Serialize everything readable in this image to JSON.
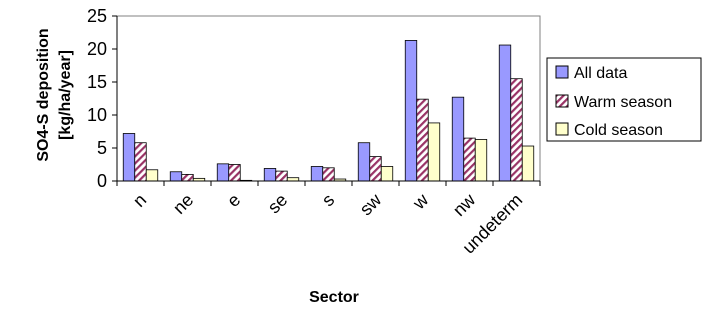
{
  "chart_data": {
    "type": "bar",
    "title": "",
    "xlabel": "Sector",
    "ylabel": [
      "SO4-S deposition",
      "[kg/ha/year]"
    ],
    "categories": [
      "n",
      "ne",
      "e",
      "se",
      "s",
      "sw",
      "w",
      "nw",
      "undeterm"
    ],
    "series": [
      {
        "name": "All data",
        "values": [
          7.2,
          1.4,
          2.6,
          1.9,
          2.2,
          5.8,
          21.3,
          12.7,
          20.6
        ],
        "color": "#9999ff",
        "pattern": "solid"
      },
      {
        "name": "Warm season",
        "values": [
          5.8,
          1.0,
          2.5,
          1.5,
          2.0,
          3.7,
          12.4,
          6.5,
          15.5
        ],
        "color": "#993366",
        "pattern": "diagonal-stripes"
      },
      {
        "name": "Cold season",
        "values": [
          1.7,
          0.4,
          0.1,
          0.5,
          0.3,
          2.2,
          8.8,
          6.3,
          5.3
        ],
        "color": "#ffffcc",
        "pattern": "solid"
      }
    ],
    "y_ticks": [
      "0",
      "5",
      "10",
      "15",
      "20",
      "25"
    ],
    "ylim": [
      0,
      25
    ],
    "grid": false,
    "legend_position": "right"
  }
}
